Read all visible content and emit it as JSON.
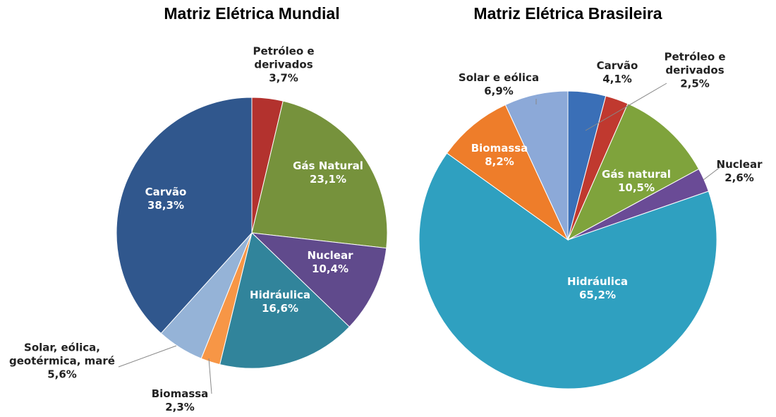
{
  "chart_data": [
    {
      "type": "pie",
      "title": "Matriz Elétrica Mundial",
      "categories": [
        "Petróleo e derivados",
        "Gás Natural",
        "Nuclear",
        "Hidráulica",
        "Biomassa",
        "Solar, eólica, geotérmica, maré",
        "Carvão"
      ],
      "values": [
        3.7,
        23.1,
        10.4,
        16.6,
        2.3,
        5.6,
        38.3
      ],
      "value_labels": [
        "3,7%",
        "23,1%",
        "10,4%",
        "16,6%",
        "2,3%",
        "5,6%",
        "38,3%"
      ],
      "colors": [
        "#b3322e",
        "#76923c",
        "#604a8c",
        "#31849b",
        "#f79646",
        "#95b3d7",
        "#30578d"
      ]
    },
    {
      "type": "pie",
      "title": "Matriz Elétrica Brasileira",
      "categories": [
        "Carvão",
        "Petróleo e derivados",
        "Gás natural",
        "Nuclear",
        "Hidráulica",
        "Biomassa",
        "Solar e eólica"
      ],
      "values": [
        4.1,
        2.5,
        10.5,
        2.6,
        65.2,
        8.2,
        6.9
      ],
      "value_labels": [
        "4,1%",
        "2,5%",
        "10,5%",
        "2,6%",
        "65,2%",
        "8,2%",
        "6,9%"
      ],
      "colors": [
        "#3a6fb7",
        "#c0392f",
        "#7fa33c",
        "#6a4b96",
        "#2fa0c0",
        "#ee7d2a",
        "#8ca9d8"
      ]
    }
  ]
}
